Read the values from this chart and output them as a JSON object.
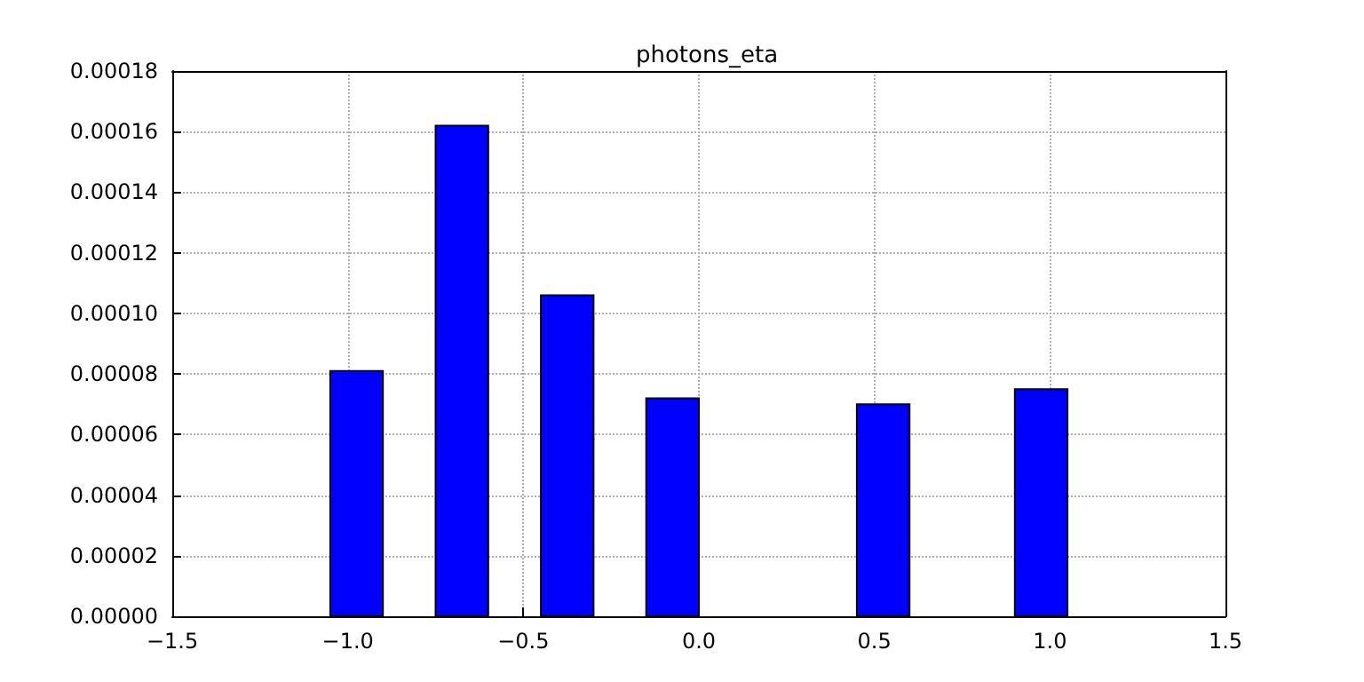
{
  "chart_data": {
    "type": "histogram",
    "title": "photons_eta",
    "bins": [
      -1.05,
      -0.9,
      -0.75,
      -0.6,
      -0.45,
      -0.3,
      -0.15,
      0,
      0.15,
      0.3,
      0.45,
      0.6,
      0.75,
      0.9,
      1.05
    ],
    "values": [
      8.1e-05,
      0,
      0.000162,
      0,
      0.000106,
      0,
      7.2e-05,
      0,
      0,
      0,
      7e-05,
      0,
      0,
      7.5e-05
    ],
    "color": "#0000ff",
    "xlim": [
      -1.5,
      1.5
    ],
    "xticks": [
      {
        "value": -1.5,
        "label": "−1.5"
      },
      {
        "value": -1,
        "label": "−1.0"
      },
      {
        "value": -0.5,
        "label": "−0.5"
      },
      {
        "value": 0,
        "label": "0.0"
      },
      {
        "value": 0.5,
        "label": "0.5"
      },
      {
        "value": 1,
        "label": "1.0"
      },
      {
        "value": 1.5,
        "label": "1.5"
      }
    ],
    "ylim": [
      0,
      0.00018
    ],
    "yticks": [
      {
        "value": 0,
        "label": "0.00000"
      },
      {
        "value": 2e-05,
        "label": "0.00002"
      },
      {
        "value": 4e-05,
        "label": "0.00004"
      },
      {
        "value": 6e-05,
        "label": "0.00006"
      },
      {
        "value": 8e-05,
        "label": "0.00008"
      },
      {
        "value": 0.0001,
        "label": "0.00010"
      },
      {
        "value": 0.00012,
        "label": "0.00012"
      },
      {
        "value": 0.00014,
        "label": "0.00014"
      },
      {
        "value": 0.00016,
        "label": "0.00016"
      },
      {
        "value": 0.00018,
        "label": "0.00018"
      }
    ],
    "grid": true
  }
}
